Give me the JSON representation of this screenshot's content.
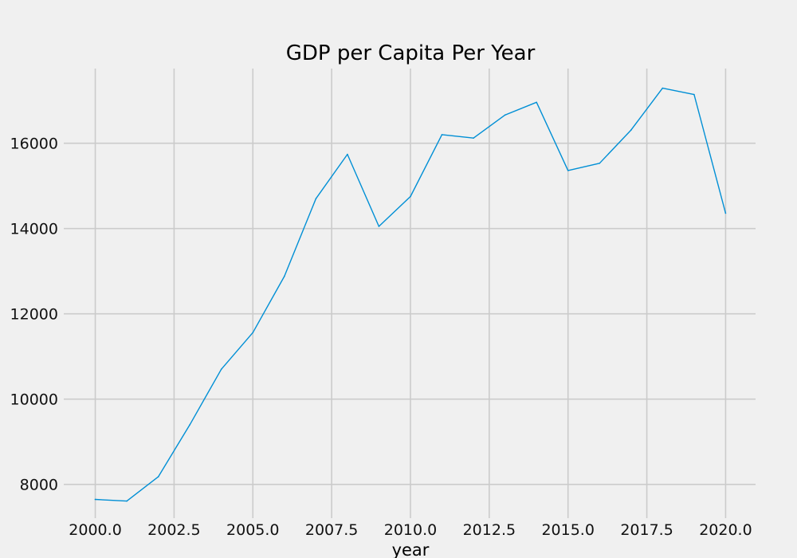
{
  "chart_data": {
    "type": "line",
    "title": "GDP per Capita Per Year",
    "xlabel": "year",
    "ylabel": "",
    "xlim": [
      1999.0,
      2020.95
    ],
    "ylim": [
      7210,
      17750
    ],
    "x_ticks": [
      2000.0,
      2002.5,
      2005.0,
      2007.5,
      2010.0,
      2012.5,
      2015.0,
      2017.5,
      2020.0
    ],
    "x_tick_labels": [
      "2000.0",
      "2002.5",
      "2005.0",
      "2007.5",
      "2010.0",
      "2012.5",
      "2015.0",
      "2017.5",
      "2020.0"
    ],
    "y_ticks": [
      8000,
      10000,
      12000,
      14000,
      16000
    ],
    "y_tick_labels": [
      "8000",
      "10000",
      "12000",
      "14000",
      "16000"
    ],
    "grid": true,
    "series": [
      {
        "color": "#008fd5",
        "x": [
          2000,
          2001,
          2002,
          2003,
          2004,
          2005,
          2006,
          2007,
          2008,
          2009,
          2010,
          2011,
          2012,
          2013,
          2014,
          2015,
          2016,
          2017,
          2018,
          2019,
          2020
        ],
        "y": [
          7650,
          7610,
          8180,
          9400,
          10700,
          11560,
          12880,
          14700,
          15740,
          14050,
          14750,
          16200,
          16120,
          16660,
          16960,
          15360,
          15530,
          16310,
          17290,
          17140,
          14360
        ]
      }
    ]
  }
}
